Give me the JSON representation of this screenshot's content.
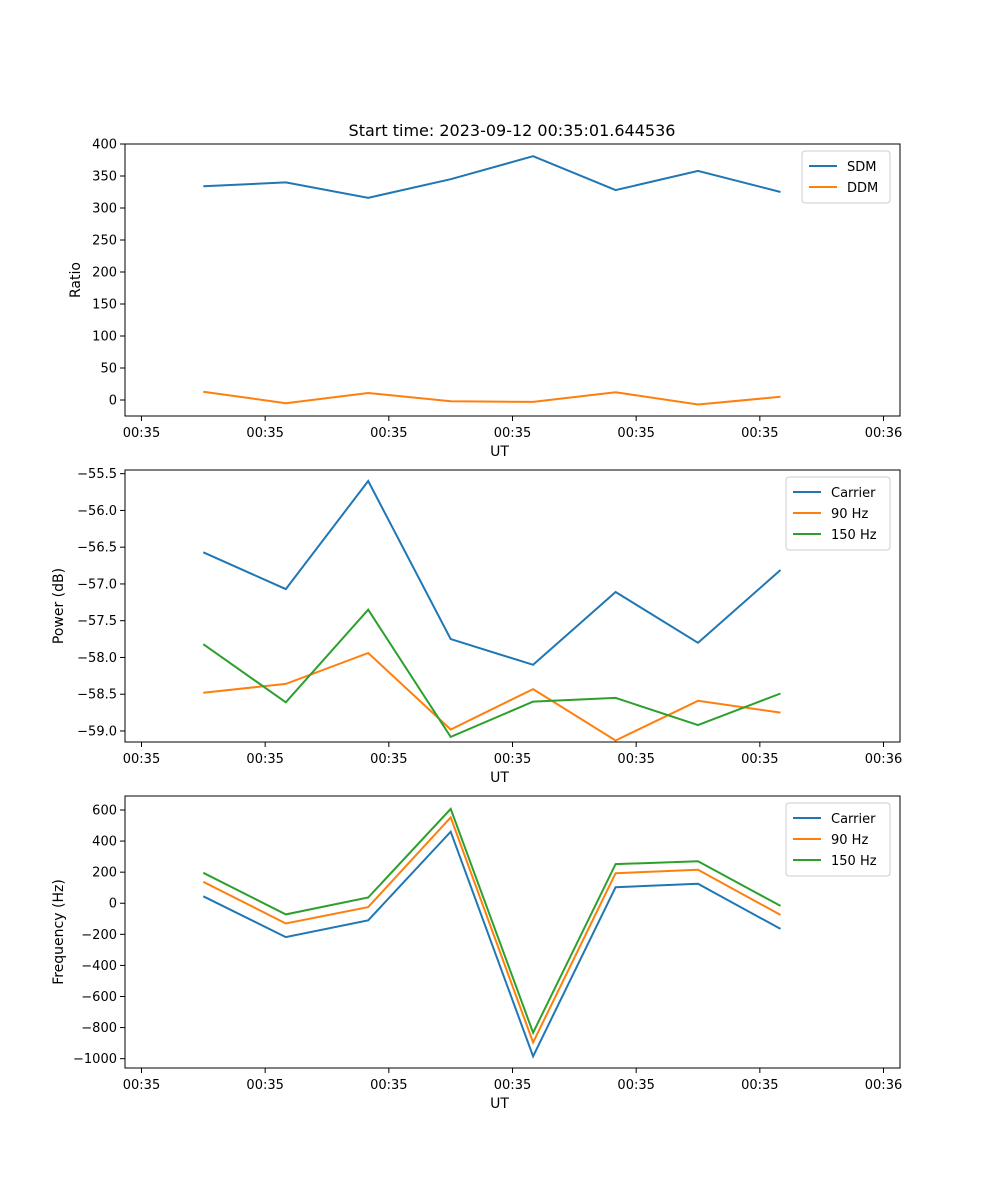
{
  "figure_title": "Start time: 2023-09-12 00:35:01.644536",
  "colors": {
    "c1": "#1f77b4",
    "c2": "#ff7f0e",
    "c3": "#2ca02c"
  },
  "chart_data": [
    {
      "type": "line",
      "title": "Start time: 2023-09-12 00:35:01.644536",
      "xlabel": "UT",
      "ylabel": "Ratio",
      "xlim": [
        -0.2,
        9.2
      ],
      "ylim": [
        -25,
        400
      ],
      "yticks": [
        0,
        50,
        100,
        150,
        200,
        250,
        300,
        350,
        400
      ],
      "yticklabels": [
        "0",
        "50",
        "100",
        "150",
        "200",
        "250",
        "300",
        "350",
        "400"
      ],
      "xticks": [
        0,
        1.5,
        3,
        4.5,
        6,
        7.5,
        9
      ],
      "xticklabels": [
        "00:35",
        "00:35",
        "00:35",
        "00:35",
        "00:35",
        "00:35",
        "00:36"
      ],
      "legend": "top-right",
      "x": [
        0.75,
        1.75,
        2.75,
        3.75,
        4.75,
        5.75,
        6.75,
        7.75
      ],
      "series": [
        {
          "name": "SDM",
          "color": "#1f77b4",
          "values": [
            334,
            340,
            316,
            345,
            381,
            328,
            358,
            325
          ]
        },
        {
          "name": "DDM",
          "color": "#ff7f0e",
          "values": [
            13,
            -5,
            11,
            -2,
            -3,
            12,
            -7,
            5
          ]
        }
      ]
    },
    {
      "type": "line",
      "title": "",
      "xlabel": "UT",
      "ylabel": "Power (dB)",
      "xlim": [
        -0.2,
        9.2
      ],
      "ylim": [
        -59.15,
        -55.45
      ],
      "yticks": [
        -59.0,
        -58.5,
        -58.0,
        -57.5,
        -57.0,
        -56.5,
        -56.0,
        -55.5
      ],
      "yticklabels": [
        "−59.0",
        "−58.5",
        "−58.0",
        "−57.5",
        "−57.0",
        "−56.5",
        "−56.0",
        "−55.5"
      ],
      "xticks": [
        0,
        1.5,
        3,
        4.5,
        6,
        7.5,
        9
      ],
      "xticklabels": [
        "00:35",
        "00:35",
        "00:35",
        "00:35",
        "00:35",
        "00:35",
        "00:36"
      ],
      "legend": "top-right",
      "x": [
        0.75,
        1.75,
        2.75,
        3.75,
        4.75,
        5.75,
        6.75,
        7.75
      ],
      "series": [
        {
          "name": "Carrier",
          "color": "#1f77b4",
          "values": [
            -56.57,
            -57.07,
            -55.6,
            -57.75,
            -58.1,
            -57.11,
            -57.8,
            -56.81
          ]
        },
        {
          "name": "90 Hz",
          "color": "#ff7f0e",
          "values": [
            -58.48,
            -58.36,
            -57.94,
            -58.98,
            -58.43,
            -59.13,
            -58.59,
            -58.75
          ]
        },
        {
          "name": "150 Hz",
          "color": "#2ca02c",
          "values": [
            -57.82,
            -58.61,
            -57.35,
            -59.08,
            -58.6,
            -58.55,
            -58.92,
            -58.49
          ]
        }
      ]
    },
    {
      "type": "line",
      "title": "",
      "xlabel": "UT",
      "ylabel": "Frequency (Hz)",
      "xlim": [
        -0.2,
        9.2
      ],
      "ylim": [
        -1060,
        690
      ],
      "yticks": [
        -1000,
        -800,
        -600,
        -400,
        -200,
        0,
        200,
        400,
        600
      ],
      "yticklabels": [
        "−1000",
        "−800",
        "−600",
        "−400",
        "−200",
        "0",
        "200",
        "400",
        "600"
      ],
      "xticks": [
        0,
        1.5,
        3,
        4.5,
        6,
        7.5,
        9
      ],
      "xticklabels": [
        "00:35",
        "00:35",
        "00:35",
        "00:35",
        "00:35",
        "00:35",
        "00:36"
      ],
      "legend": "top-right",
      "x": [
        0.75,
        1.75,
        2.75,
        3.75,
        4.75,
        5.75,
        6.75,
        7.75
      ],
      "series": [
        {
          "name": "Carrier",
          "color": "#1f77b4",
          "values": [
            45,
            -218,
            -110,
            460,
            -985,
            103,
            125,
            -165
          ]
        },
        {
          "name": "90 Hz",
          "color": "#ff7f0e",
          "values": [
            138,
            -130,
            -25,
            552,
            -895,
            193,
            215,
            -75
          ]
        },
        {
          "name": "150 Hz",
          "color": "#2ca02c",
          "values": [
            196,
            -72,
            37,
            607,
            -833,
            252,
            270,
            -17
          ]
        }
      ]
    }
  ]
}
